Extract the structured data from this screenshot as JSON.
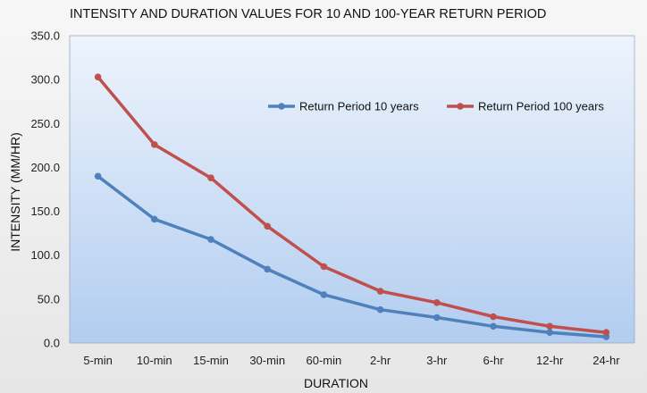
{
  "chart_data": {
    "type": "line",
    "title": "INTENSITY AND DURATION VALUES FOR 10 AND 100-YEAR RETURN PERIOD",
    "xlabel": "DURATION",
    "ylabel": "INTENSITY (MM/HR)",
    "categories": [
      "5-min",
      "10-min",
      "15-min",
      "30-min",
      "60-min",
      "2-hr",
      "3-hr",
      "6-hr",
      "12-hr",
      "24-hr"
    ],
    "ylim": [
      0,
      350
    ],
    "yticks": [
      "0.0",
      "50.0",
      "100.0",
      "150.0",
      "200.0",
      "250.0",
      "300.0",
      "350.0"
    ],
    "grid": false,
    "legend_position": "top-right",
    "series": [
      {
        "name": "Return Period 10 years",
        "color": "#4f81bd",
        "values": [
          190,
          141,
          118,
          84,
          55,
          38,
          29,
          19,
          12,
          7
        ]
      },
      {
        "name": "Return Period 100 years",
        "color": "#c0504d",
        "values": [
          303,
          226,
          188,
          133,
          87,
          59,
          46,
          30,
          19,
          12
        ]
      }
    ],
    "plot_background": [
      "#eef4fc",
      "#b2cdf0"
    ]
  }
}
